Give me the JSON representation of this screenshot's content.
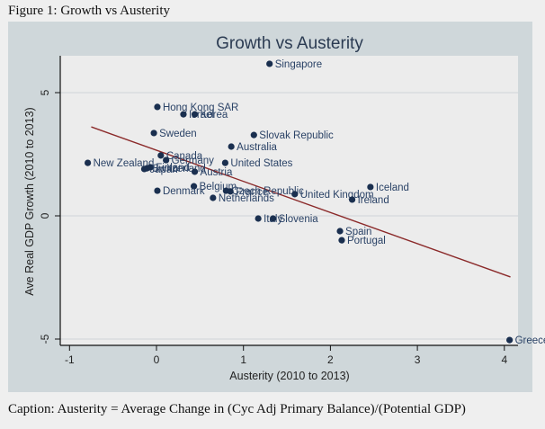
{
  "figure_title": "Figure 1: Growth vs Austerity",
  "caption": "Caption: Austerity = Average Change in (Cyc Adj Primary Balance)/(Potential GDP)",
  "colors": {
    "panel": "#cfd7da",
    "plot_bg": "#ececec",
    "marker": "#1a2f4f",
    "label": "#2a4266",
    "trend": "#8b2a2a",
    "grid": "#d6d9dc"
  },
  "chart_data": {
    "type": "scatter",
    "title": "Growth vs Austerity",
    "xlabel": "Austerity (2010 to 2013)",
    "ylabel": "Ave Real GDP Growth (2010 to 2013)",
    "xlim": [
      -1.1,
      4.15
    ],
    "ylim": [
      -5.5,
      6.5
    ],
    "xticks": [
      -1,
      0,
      1,
      2,
      3,
      4
    ],
    "yticks": [
      -5,
      0,
      5
    ],
    "grid": true,
    "legend": "none",
    "points": [
      {
        "label": "Singapore",
        "x": 1.3,
        "y": 6.17
      },
      {
        "label": "Hong Kong SAR",
        "x": 0.01,
        "y": 4.42
      },
      {
        "label": "Israel",
        "x": 0.31,
        "y": 4.12
      },
      {
        "label": "Korea",
        "x": 0.44,
        "y": 4.12
      },
      {
        "label": "Sweden",
        "x": -0.03,
        "y": 3.36
      },
      {
        "label": "Slovak Republic",
        "x": 1.12,
        "y": 3.28
      },
      {
        "label": "Australia",
        "x": 0.86,
        "y": 2.81
      },
      {
        "label": "Canada",
        "x": 0.05,
        "y": 2.45
      },
      {
        "label": "Germany",
        "x": 0.11,
        "y": 2.26
      },
      {
        "label": "United States",
        "x": 0.79,
        "y": 2.15
      },
      {
        "label": "New Zealand",
        "x": -0.79,
        "y": 2.15
      },
      {
        "label": "Finland",
        "x": -0.07,
        "y": 1.97
      },
      {
        "label": "Switzerland",
        "x": -0.11,
        "y": 1.93
      },
      {
        "label": "Japan",
        "x": -0.14,
        "y": 1.9
      },
      {
        "label": "Austria",
        "x": 0.44,
        "y": 1.79
      },
      {
        "label": "Belgium",
        "x": 0.43,
        "y": 1.2
      },
      {
        "label": "Denmark",
        "x": 0.01,
        "y": 1.02
      },
      {
        "label": "Czech Republic",
        "x": 0.8,
        "y": 1.02
      },
      {
        "label": "France",
        "x": 0.85,
        "y": 0.99
      },
      {
        "label": "Netherlands",
        "x": 0.65,
        "y": 0.73
      },
      {
        "label": "United Kingdom",
        "x": 1.59,
        "y": 0.88
      },
      {
        "label": "Iceland",
        "x": 2.46,
        "y": 1.17
      },
      {
        "label": "Ireland",
        "x": 2.25,
        "y": 0.66
      },
      {
        "label": "Italy",
        "x": 1.17,
        "y": -0.11
      },
      {
        "label": "Slovenia",
        "x": 1.34,
        "y": -0.11
      },
      {
        "label": "Spain",
        "x": 2.11,
        "y": -0.62
      },
      {
        "label": "Portugal",
        "x": 2.13,
        "y": -0.99
      },
      {
        "label": "Greece",
        "x": 4.06,
        "y": -5.04
      }
    ],
    "trendline": {
      "x": [
        -0.75,
        4.07
      ],
      "y": [
        3.61,
        -2.48
      ]
    }
  }
}
